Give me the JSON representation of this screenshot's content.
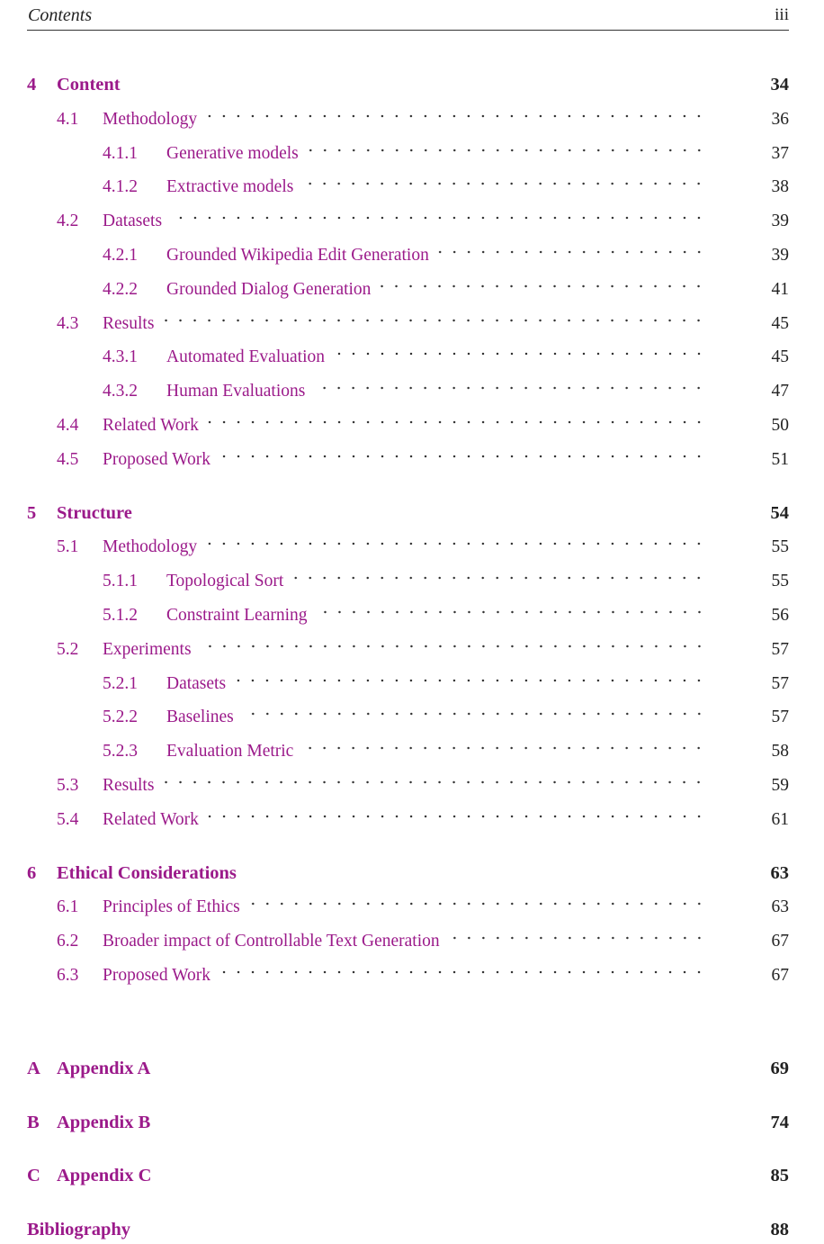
{
  "header": {
    "title": "Contents",
    "page": "iii"
  },
  "entries": [
    {
      "level": "chapter",
      "num": "4",
      "title": "Content",
      "page": "34"
    },
    {
      "level": "section",
      "num": "4.1",
      "title": "Methodology",
      "page": "36"
    },
    {
      "level": "subsection",
      "num": "4.1.1",
      "title": "Generative models",
      "page": "37"
    },
    {
      "level": "subsection",
      "num": "4.1.2",
      "title": "Extractive models",
      "page": "38"
    },
    {
      "level": "section",
      "num": "4.2",
      "title": "Datasets",
      "page": "39"
    },
    {
      "level": "subsection",
      "num": "4.2.1",
      "title": "Grounded Wikipedia Edit Generation",
      "page": "39"
    },
    {
      "level": "subsection",
      "num": "4.2.2",
      "title": "Grounded Dialog Generation",
      "page": "41"
    },
    {
      "level": "section",
      "num": "4.3",
      "title": "Results",
      "page": "45"
    },
    {
      "level": "subsection",
      "num": "4.3.1",
      "title": "Automated Evaluation",
      "page": "45"
    },
    {
      "level": "subsection",
      "num": "4.3.2",
      "title": "Human Evaluations",
      "page": "47"
    },
    {
      "level": "section",
      "num": "4.4",
      "title": "Related Work",
      "page": "50"
    },
    {
      "level": "section",
      "num": "4.5",
      "title": "Proposed Work",
      "page": "51"
    },
    {
      "level": "chapter",
      "num": "5",
      "title": "Structure",
      "page": "54"
    },
    {
      "level": "section",
      "num": "5.1",
      "title": "Methodology",
      "page": "55"
    },
    {
      "level": "subsection",
      "num": "5.1.1",
      "title": "Topological Sort",
      "page": "55"
    },
    {
      "level": "subsection",
      "num": "5.1.2",
      "title": "Constraint Learning",
      "page": "56"
    },
    {
      "level": "section",
      "num": "5.2",
      "title": "Experiments",
      "page": "57"
    },
    {
      "level": "subsection",
      "num": "5.2.1",
      "title": "Datasets",
      "page": "57"
    },
    {
      "level": "subsection",
      "num": "5.2.2",
      "title": "Baselines",
      "page": "57"
    },
    {
      "level": "subsection",
      "num": "5.2.3",
      "title": "Evaluation Metric",
      "page": "58"
    },
    {
      "level": "section",
      "num": "5.3",
      "title": "Results",
      "page": "59"
    },
    {
      "level": "section",
      "num": "5.4",
      "title": "Related Work",
      "page": "61"
    },
    {
      "level": "chapter",
      "num": "6",
      "title": "Ethical Considerations",
      "page": "63"
    },
    {
      "level": "section",
      "num": "6.1",
      "title": "Principles of Ethics",
      "page": "63"
    },
    {
      "level": "section",
      "num": "6.2",
      "title": "Broader impact of Controllable Text Generation",
      "page": "67"
    },
    {
      "level": "section",
      "num": "6.3",
      "title": "Proposed Work",
      "page": "67"
    },
    {
      "level": "chapter",
      "num": "A",
      "title": "Appendix A",
      "page": "69"
    },
    {
      "level": "chapter",
      "num": "B",
      "title": "Appendix B",
      "page": "74"
    },
    {
      "level": "chapter",
      "num": "C",
      "title": "Appendix C",
      "page": "85"
    },
    {
      "level": "chapter",
      "num": "",
      "title": "Bibliography",
      "page": "88"
    }
  ],
  "colors": {
    "link": "#9b1a8a",
    "text": "#222222"
  }
}
